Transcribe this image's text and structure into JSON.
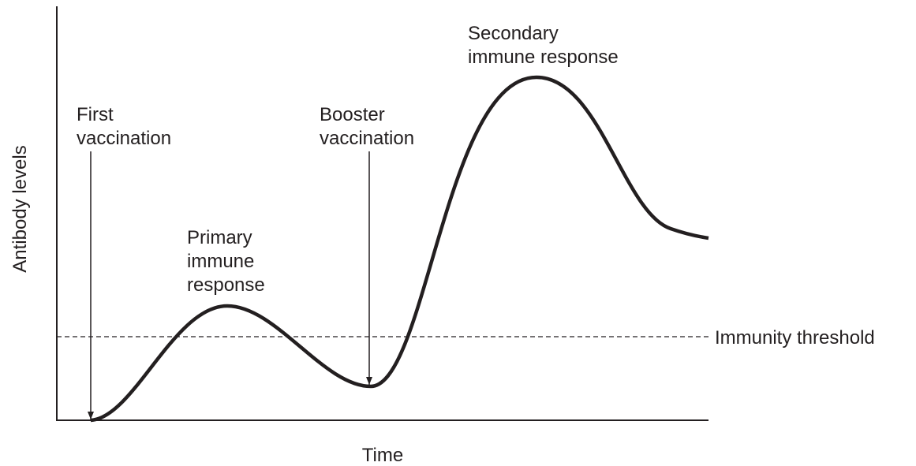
{
  "axes": {
    "x_label": "Time",
    "y_label": "Antibody levels"
  },
  "threshold": {
    "label": "Immunity threshold"
  },
  "annotations": [
    {
      "lines": [
        "First",
        "vaccination"
      ]
    },
    {
      "lines": [
        "Booster",
        "vaccination"
      ]
    },
    {
      "lines": [
        "Primary",
        "immune",
        "response"
      ]
    },
    {
      "lines": [
        "Secondary",
        "immune response"
      ]
    }
  ]
}
